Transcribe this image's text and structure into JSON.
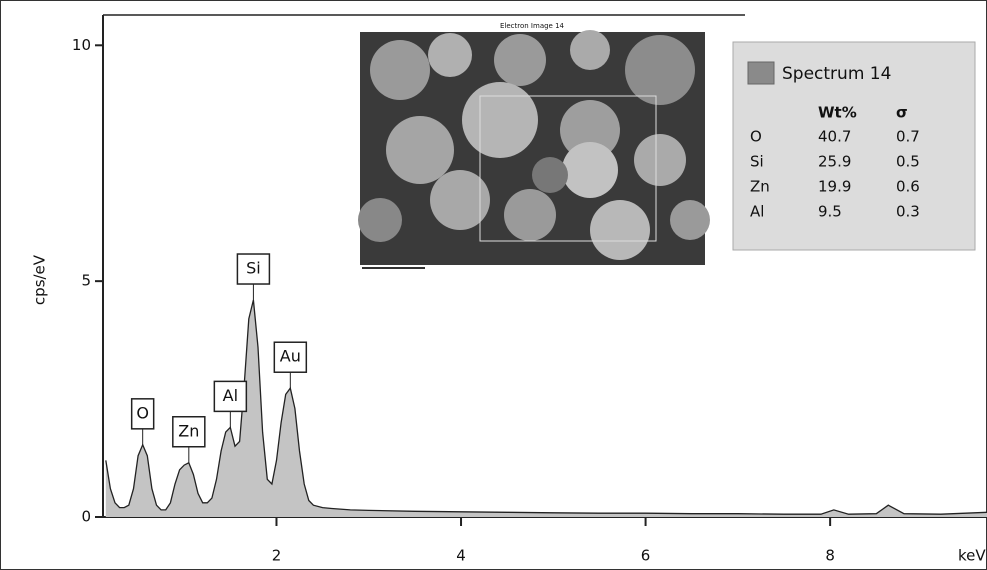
{
  "chart_data": {
    "type": "area",
    "y_label": "cps/eV",
    "x_label": "keV",
    "x": [
      0.15,
      0.2,
      0.25,
      0.3,
      0.35,
      0.4,
      0.45,
      0.5,
      0.55,
      0.6,
      0.65,
      0.7,
      0.75,
      0.8,
      0.85,
      0.9,
      0.95,
      1.0,
      1.05,
      1.1,
      1.15,
      1.2,
      1.25,
      1.3,
      1.35,
      1.4,
      1.45,
      1.5,
      1.55,
      1.6,
      1.65,
      1.7,
      1.75,
      1.8,
      1.85,
      1.9,
      1.95,
      2.0,
      2.05,
      2.1,
      2.15,
      2.2,
      2.25,
      2.3,
      2.35,
      2.4,
      2.5,
      2.6,
      2.8,
      3.0,
      3.5,
      4.0,
      4.5,
      5.0,
      5.5,
      6.0,
      6.5,
      7.0,
      7.5,
      7.9,
      8.04,
      8.2,
      8.5,
      8.63,
      8.8,
      9.2,
      9.7
    ],
    "series": [
      {
        "name": "Spectrum 14",
        "color": "#c4c4c4",
        "values": [
          1.2,
          0.6,
          0.3,
          0.2,
          0.2,
          0.25,
          0.6,
          1.3,
          1.53,
          1.3,
          0.6,
          0.25,
          0.15,
          0.15,
          0.3,
          0.7,
          1.0,
          1.1,
          1.15,
          0.9,
          0.5,
          0.3,
          0.3,
          0.4,
          0.8,
          1.4,
          1.8,
          1.9,
          1.5,
          1.6,
          2.8,
          4.2,
          4.6,
          3.6,
          1.8,
          0.8,
          0.7,
          1.2,
          2.0,
          2.6,
          2.73,
          2.3,
          1.4,
          0.7,
          0.35,
          0.25,
          0.2,
          0.18,
          0.15,
          0.14,
          0.12,
          0.11,
          0.1,
          0.09,
          0.08,
          0.08,
          0.07,
          0.07,
          0.06,
          0.06,
          0.15,
          0.06,
          0.07,
          0.25,
          0.07,
          0.06,
          0.1
        ]
      }
    ],
    "xlim": [
      0.12,
      9.7
    ],
    "xticks": [
      2,
      4,
      6,
      8
    ],
    "ylim": [
      0,
      10.6
    ],
    "yticks": [
      0,
      5,
      10
    ],
    "peaks": [
      {
        "label": "O",
        "x": 0.55
      },
      {
        "label": "Zn",
        "x": 1.05
      },
      {
        "label": "Al",
        "x": 1.5
      },
      {
        "label": "Si",
        "x": 1.75
      },
      {
        "label": "Au",
        "x": 2.15
      }
    ]
  },
  "inset": {
    "title": "Electron Image 14"
  },
  "legend": {
    "title": "Spectrum 14",
    "columns": [
      "Wt%",
      "σ"
    ],
    "rows": [
      [
        "O",
        "40.7",
        "0.7"
      ],
      [
        "Si",
        "25.9",
        "0.5"
      ],
      [
        "Zn",
        "19.9",
        "0.6"
      ],
      [
        "Al",
        "9.5",
        "0.3"
      ]
    ]
  }
}
